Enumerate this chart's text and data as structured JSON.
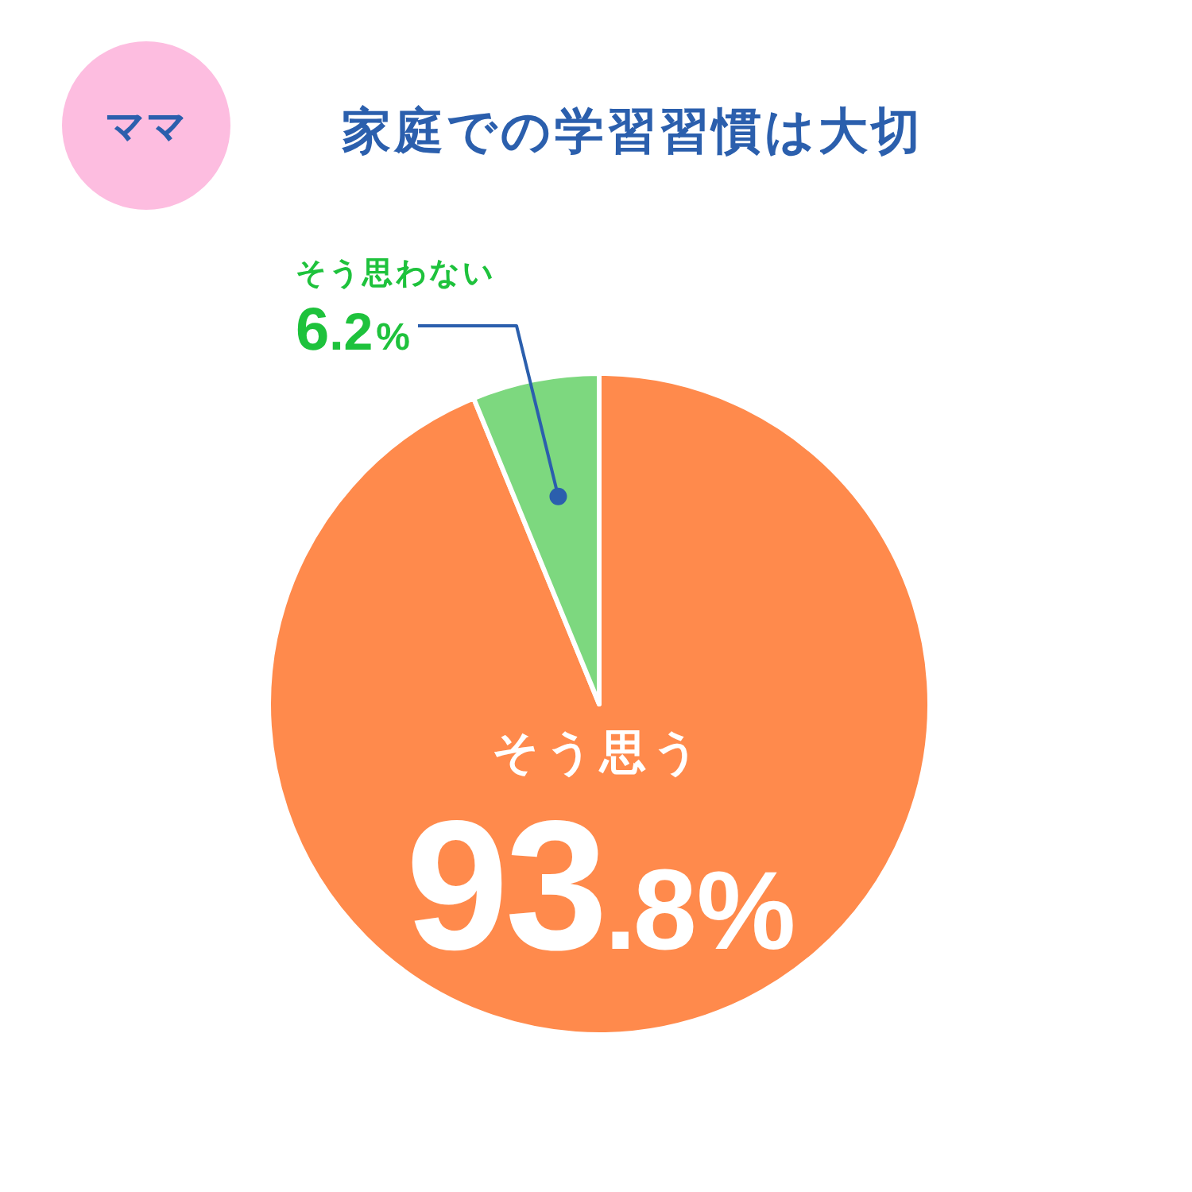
{
  "chart_data": {
    "type": "pie",
    "title": "家庭での学習習慣は大切",
    "categories": [
      "そう思う",
      "そう思わない"
    ],
    "values": [
      93.8,
      6.2
    ],
    "colors": [
      "#ff8a4c",
      "#7dd87f"
    ],
    "value_labels": [
      "93.8%",
      "6.2%"
    ],
    "annotations": [
      "ママ"
    ]
  }
}
